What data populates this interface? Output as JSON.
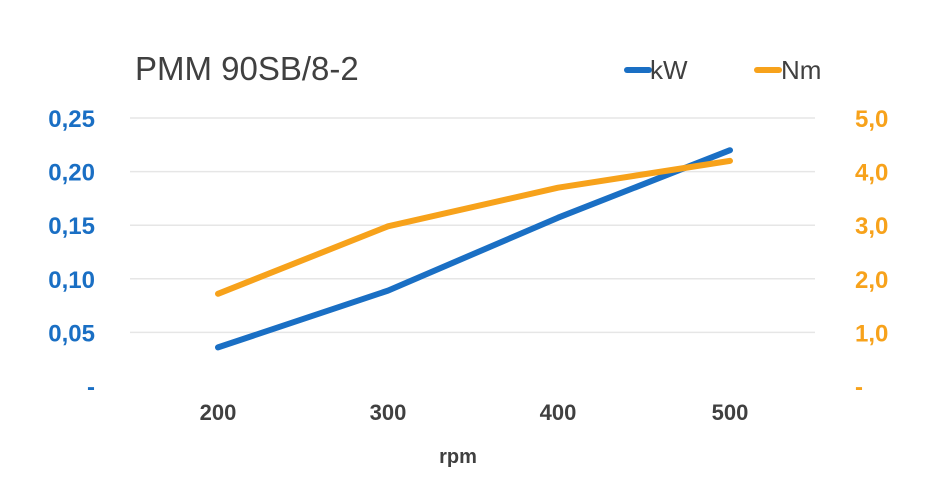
{
  "chart_data": {
    "type": "line",
    "title": "PMM 90SB/8-2",
    "xlabel": "rpm",
    "x": [
      200,
      300,
      400,
      500
    ],
    "x_tick_labels": [
      "200",
      "300",
      "400",
      "500"
    ],
    "y_left": {
      "range": [
        0,
        0.25
      ],
      "tick_labels": [
        "-",
        "0,05",
        "0,10",
        "0,15",
        "0,20",
        "0,25"
      ],
      "color": "#1a6fc4"
    },
    "y_right": {
      "range": [
        0,
        5.0
      ],
      "tick_labels": [
        "-",
        "1,0",
        "2,0",
        "3,0",
        "4,0",
        "5,0"
      ],
      "color": "#f7a21b"
    },
    "series": [
      {
        "name": "kW",
        "axis": "left",
        "color": "#1a6fc4",
        "values": [
          0.036,
          0.089,
          0.157,
          0.22
        ]
      },
      {
        "name": "Nm",
        "axis": "right",
        "color": "#f7a21b",
        "values": [
          1.72,
          2.98,
          3.7,
          4.2
        ]
      }
    ],
    "legend_position": "top-right",
    "grid": true
  }
}
